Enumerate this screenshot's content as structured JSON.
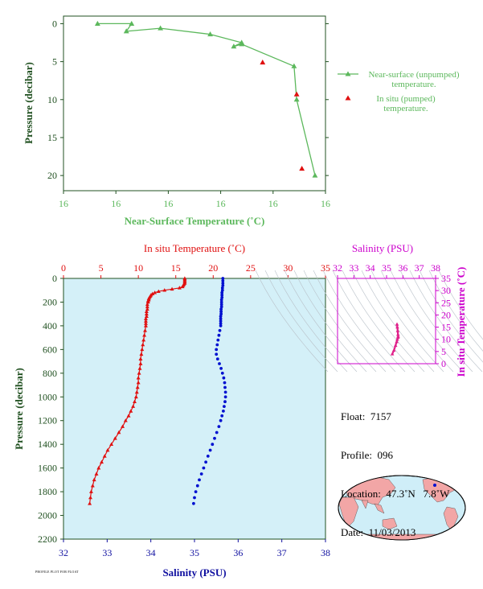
{
  "colors": {
    "green": "#5cb85c",
    "red": "#e01010",
    "blue": "#0010d0",
    "magenta": "#cc00cc",
    "plot_bg": "#d4f0f8",
    "axis_dark_green": "#205020",
    "axis_blue": "#1010a0"
  },
  "chart_data": [
    {
      "type": "line",
      "xlabel": "Near-Surface Temperature (˚C)",
      "ylabel": "Pressure (decibar)",
      "xtick_labels": [
        "16",
        "16",
        "16",
        "16",
        "16",
        "16"
      ],
      "yticks": [
        0,
        5,
        10,
        15,
        20
      ],
      "ylim": [
        22,
        -1
      ],
      "x_range": [
        15.7,
        16.7
      ],
      "y_inverted": true,
      "series": [
        {
          "name": "Near-surface (unpumped) temperature.",
          "marker": "triangle",
          "x": [
            15.83,
            15.96,
            15.94,
            16.07,
            16.26,
            16.38,
            16.35,
            16.38,
            16.58,
            16.59,
            16.66
          ],
          "y": [
            0.0,
            0.0,
            1.0,
            0.6,
            1.4,
            2.5,
            3.0,
            2.7,
            5.6,
            10.0,
            20.0
          ]
        },
        {
          "name": "In situ (pumped) temperature.",
          "marker": "triangle",
          "x": [
            16.46,
            16.59,
            16.61
          ],
          "y": [
            5.1,
            9.3,
            19.1
          ]
        }
      ],
      "legend_position": "right"
    },
    {
      "type": "scatter",
      "ylabel": "Pressure (decibar)",
      "top_axis_label": "In situ Temperature (˚C)",
      "bottom_axis_label": "Salinity (PSU)",
      "top_ticks": [
        0,
        5,
        10,
        15,
        20,
        25,
        30,
        35
      ],
      "bottom_ticks": [
        32,
        33,
        34,
        35,
        36,
        37,
        38
      ],
      "yticks": [
        0,
        200,
        400,
        600,
        800,
        1000,
        1200,
        1400,
        1600,
        1800,
        2000,
        2200
      ],
      "temperature_range": [
        0,
        35
      ],
      "salinity_range": [
        32,
        38
      ],
      "pressure_range": [
        0,
        2200
      ],
      "temperature_profile": {
        "pressure": [
          0,
          10,
          20,
          30,
          40,
          50,
          60,
          70,
          80,
          90,
          100,
          110,
          120,
          130,
          140,
          150,
          160,
          170,
          180,
          190,
          200,
          220,
          240,
          260,
          280,
          300,
          320,
          340,
          360,
          380,
          400,
          440,
          480,
          520,
          560,
          600,
          640,
          680,
          720,
          760,
          800,
          840,
          880,
          920,
          960,
          1000,
          1040,
          1080,
          1120,
          1160,
          1200,
          1250,
          1300,
          1350,
          1400,
          1450,
          1500,
          1550,
          1600,
          1650,
          1700,
          1750,
          1800,
          1850,
          1900
        ],
        "temperature": [
          16.2,
          16.2,
          16.2,
          16.2,
          16.2,
          16.1,
          16.0,
          15.9,
          15.5,
          14.5,
          13.5,
          12.7,
          12.2,
          11.9,
          11.7,
          11.6,
          11.5,
          11.4,
          11.4,
          11.3,
          11.3,
          11.2,
          11.2,
          11.2,
          11.1,
          11.1,
          11.1,
          11.0,
          11.0,
          11.0,
          11.0,
          10.9,
          10.8,
          10.7,
          10.6,
          10.5,
          10.4,
          10.3,
          10.3,
          10.2,
          10.1,
          10.0,
          10.0,
          9.9,
          9.8,
          9.7,
          9.5,
          9.3,
          9.0,
          8.7,
          8.3,
          7.9,
          7.4,
          6.9,
          6.4,
          5.9,
          5.5,
          5.1,
          4.7,
          4.4,
          4.1,
          3.9,
          3.7,
          3.6,
          3.5
        ]
      },
      "salinity_profile": {
        "pressure": [
          0,
          20,
          40,
          60,
          80,
          100,
          120,
          140,
          160,
          180,
          200,
          220,
          240,
          260,
          280,
          300,
          320,
          340,
          360,
          380,
          400,
          440,
          480,
          520,
          560,
          600,
          640,
          680,
          720,
          760,
          800,
          840,
          880,
          920,
          960,
          1000,
          1040,
          1080,
          1120,
          1160,
          1200,
          1250,
          1300,
          1350,
          1400,
          1450,
          1500,
          1550,
          1600,
          1650,
          1700,
          1750,
          1800,
          1850,
          1900
        ],
        "salinity": [
          35.65,
          35.65,
          35.65,
          35.65,
          35.64,
          35.64,
          35.63,
          35.63,
          35.63,
          35.62,
          35.62,
          35.62,
          35.62,
          35.61,
          35.61,
          35.61,
          35.6,
          35.6,
          35.6,
          35.6,
          35.6,
          35.58,
          35.56,
          35.54,
          35.52,
          35.5,
          35.5,
          35.53,
          35.57,
          35.61,
          35.64,
          35.67,
          35.69,
          35.7,
          35.71,
          35.71,
          35.7,
          35.68,
          35.66,
          35.63,
          35.6,
          35.56,
          35.51,
          35.46,
          35.41,
          35.36,
          35.31,
          35.26,
          35.21,
          35.16,
          35.11,
          35.07,
          35.03,
          35.0,
          34.98
        ]
      }
    },
    {
      "type": "scatter",
      "title": "Salinity (PSU)",
      "ylabel": "In situ Temperature (˚C)",
      "x_ticks": [
        32,
        33,
        34,
        35,
        36,
        37,
        38
      ],
      "y_ticks": [
        0,
        5,
        10,
        15,
        20,
        25,
        30,
        35
      ],
      "x_range": [
        32,
        38
      ],
      "y_range": [
        0,
        35
      ],
      "series": [
        {
          "x": [
            35.35,
            35.45,
            35.55,
            35.62,
            35.66,
            35.7,
            35.71,
            35.7,
            35.68,
            35.66,
            35.64
          ],
          "y": [
            4.0,
            5.5,
            7.5,
            9.0,
            10.0,
            10.8,
            11.2,
            12.0,
            13.5,
            15.0,
            16.2
          ]
        }
      ]
    }
  ],
  "float_info": {
    "float": "Float:  7157",
    "profile": "Profile:  096",
    "location": "Location:  47.3˚N   7.8˚W",
    "date": "Date:  11/03/2013"
  },
  "stamp": "PROFILE PLOT FOR FLOAT"
}
